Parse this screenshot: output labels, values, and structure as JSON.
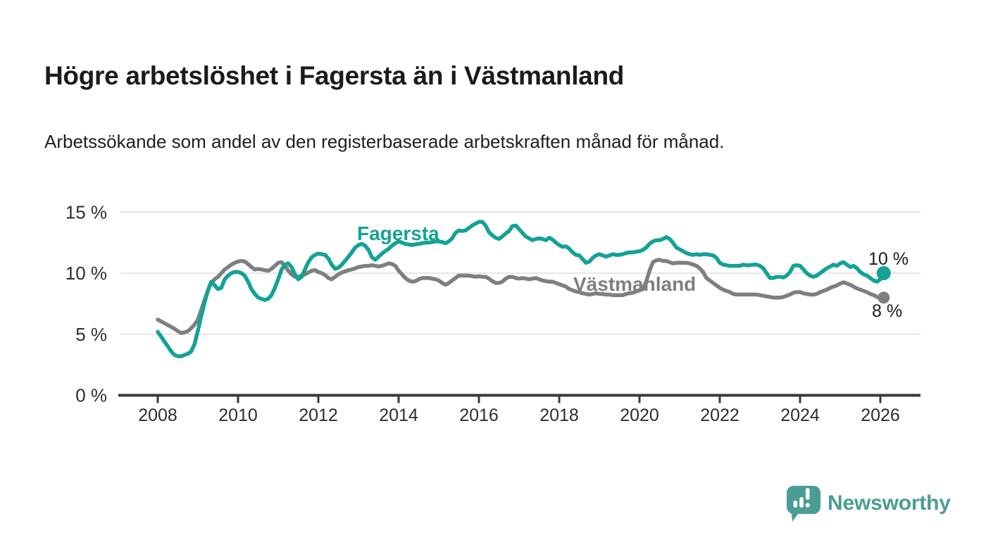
{
  "page": {
    "title": "Högre arbetslöshet i Fagersta än i Västmanland",
    "subtitle": "Arbetssökande som andel av den registerbaserade arbetskraften månad för månad."
  },
  "branding": {
    "logo_text": "Newsworthy",
    "brand_color": "#4a9d94",
    "icon": "newsworthy-chart-bubble-icon"
  },
  "chart_data": {
    "type": "line",
    "title": "Högre arbetslöshet i Fagersta än i Västmanland",
    "subtitle": "Arbetssökande som andel av den registerbaserade arbetskraften månad för månad.",
    "unit": "%",
    "frequency": "monthly",
    "x_start": "2008-01",
    "x_end": "2026-02",
    "xlabel": "",
    "ylabel": "",
    "ylim": [
      0,
      16.2
    ],
    "grid": "horizontal",
    "gridlines_at": [
      5,
      10,
      15
    ],
    "x_tick_labels": [
      "2008",
      "2010",
      "2012",
      "2014",
      "2016",
      "2018",
      "2020",
      "2022",
      "2024",
      "2026"
    ],
    "y_ticks": [
      {
        "value": 15,
        "label": "15 %"
      },
      {
        "value": 10,
        "label": "10 %"
      },
      {
        "value": 5,
        "label": "5 %"
      },
      {
        "value": 0,
        "label": "0 %"
      }
    ],
    "legend_position": "inline-labels",
    "series": [
      {
        "name": "Fagersta",
        "color": "#14a296",
        "end_label": "10 %",
        "end_value": 10,
        "values": [
          5.2,
          4.8,
          4.4,
          4.0,
          3.6,
          3.3,
          3.2,
          3.2,
          3.3,
          3.4,
          3.6,
          4.2,
          5.3,
          6.5,
          7.6,
          8.6,
          9.3,
          9.0,
          8.7,
          8.8,
          9.5,
          9.8,
          10.0,
          10.1,
          10.1,
          10.0,
          9.8,
          9.3,
          8.7,
          8.3,
          8.0,
          7.9,
          7.8,
          7.9,
          8.2,
          8.8,
          9.5,
          10.3,
          10.7,
          10.8,
          10.5,
          9.9,
          9.5,
          9.7,
          10.3,
          10.9,
          11.3,
          11.5,
          11.6,
          11.55,
          11.5,
          11.2,
          10.7,
          10.35,
          10.45,
          10.7,
          11.0,
          11.35,
          11.7,
          12.1,
          12.3,
          12.4,
          12.25,
          11.9,
          11.3,
          11.1,
          11.35,
          11.6,
          11.8,
          12.0,
          12.25,
          12.45,
          12.6,
          12.5,
          12.4,
          12.35,
          12.3,
          12.35,
          12.4,
          12.45,
          12.5,
          12.5,
          12.55,
          12.6,
          12.6,
          12.55,
          12.45,
          12.6,
          12.85,
          13.3,
          13.5,
          13.45,
          13.5,
          13.7,
          13.9,
          14.05,
          14.2,
          14.2,
          13.9,
          13.35,
          13.1,
          12.9,
          12.8,
          13.0,
          13.25,
          13.45,
          13.85,
          13.9,
          13.6,
          13.3,
          13.0,
          12.85,
          12.7,
          12.8,
          12.85,
          12.8,
          12.7,
          12.9,
          12.75,
          12.5,
          12.3,
          12.15,
          12.2,
          12.0,
          11.7,
          11.5,
          11.45,
          11.15,
          10.85,
          10.95,
          11.25,
          11.45,
          11.55,
          11.45,
          11.35,
          11.45,
          11.55,
          11.5,
          11.5,
          11.55,
          11.65,
          11.7,
          11.7,
          11.75,
          11.8,
          11.9,
          12.1,
          12.4,
          12.6,
          12.7,
          12.7,
          12.8,
          12.95,
          12.8,
          12.5,
          12.1,
          11.95,
          11.8,
          11.65,
          11.55,
          11.5,
          11.55,
          11.5,
          11.55,
          11.55,
          11.5,
          11.45,
          11.25,
          10.85,
          10.7,
          10.65,
          10.6,
          10.6,
          10.6,
          10.6,
          10.7,
          10.65,
          10.65,
          10.7,
          10.7,
          10.6,
          10.4,
          10.0,
          9.6,
          9.6,
          9.7,
          9.7,
          9.65,
          9.8,
          10.1,
          10.6,
          10.65,
          10.6,
          10.3,
          10.0,
          9.8,
          9.7,
          9.8,
          10.0,
          10.2,
          10.4,
          10.55,
          10.7,
          10.6,
          10.8,
          10.9,
          10.7,
          10.5,
          10.6,
          10.4,
          10.1,
          9.9,
          9.8,
          9.6,
          9.4,
          9.3,
          9.5,
          10.0
        ]
      },
      {
        "name": "Västmanland",
        "color": "#7e7f81",
        "end_label": "8 %",
        "end_value": 8,
        "values": [
          6.2,
          6.05,
          5.9,
          5.75,
          5.6,
          5.45,
          5.25,
          5.1,
          5.15,
          5.25,
          5.5,
          5.8,
          6.2,
          7.0,
          7.8,
          8.6,
          9.2,
          9.5,
          9.7,
          10.0,
          10.3,
          10.5,
          10.7,
          10.85,
          10.95,
          11.0,
          10.95,
          10.75,
          10.5,
          10.3,
          10.35,
          10.3,
          10.25,
          10.2,
          10.35,
          10.6,
          10.85,
          10.9,
          10.6,
          10.2,
          9.9,
          9.7,
          9.7,
          9.8,
          9.9,
          10.05,
          10.2,
          10.25,
          10.1,
          10.0,
          9.85,
          9.6,
          9.5,
          9.7,
          9.9,
          10.05,
          10.15,
          10.25,
          10.3,
          10.4,
          10.5,
          10.55,
          10.6,
          10.6,
          10.65,
          10.6,
          10.55,
          10.6,
          10.7,
          10.8,
          10.75,
          10.6,
          10.2,
          9.9,
          9.6,
          9.4,
          9.3,
          9.35,
          9.5,
          9.6,
          9.6,
          9.6,
          9.55,
          9.5,
          9.4,
          9.2,
          9.05,
          9.2,
          9.4,
          9.6,
          9.8,
          9.8,
          9.8,
          9.8,
          9.75,
          9.7,
          9.75,
          9.7,
          9.7,
          9.55,
          9.35,
          9.2,
          9.2,
          9.3,
          9.55,
          9.7,
          9.7,
          9.6,
          9.55,
          9.6,
          9.55,
          9.5,
          9.55,
          9.6,
          9.5,
          9.4,
          9.35,
          9.3,
          9.3,
          9.2,
          9.1,
          9.0,
          8.9,
          8.7,
          8.6,
          8.5,
          8.45,
          8.35,
          8.3,
          8.25,
          8.3,
          8.35,
          8.3,
          8.3,
          8.25,
          8.25,
          8.2,
          8.2,
          8.2,
          8.2,
          8.3,
          8.35,
          8.4,
          8.5,
          8.6,
          8.7,
          9.3,
          10.2,
          10.9,
          11.05,
          11.1,
          11.0,
          11.0,
          10.9,
          10.8,
          10.85,
          10.85,
          10.85,
          10.85,
          10.8,
          10.7,
          10.6,
          10.4,
          10.1,
          9.6,
          9.4,
          9.2,
          9.0,
          8.8,
          8.65,
          8.55,
          8.45,
          8.3,
          8.25,
          8.25,
          8.25,
          8.25,
          8.25,
          8.25,
          8.25,
          8.2,
          8.15,
          8.1,
          8.05,
          8.0,
          8.0,
          8.0,
          8.05,
          8.15,
          8.25,
          8.4,
          8.45,
          8.45,
          8.35,
          8.3,
          8.25,
          8.25,
          8.3,
          8.45,
          8.55,
          8.65,
          8.8,
          8.9,
          9.0,
          9.15,
          9.25,
          9.15,
          9.05,
          8.9,
          8.75,
          8.65,
          8.55,
          8.45,
          8.3,
          8.2,
          8.05,
          7.95,
          8.0
        ]
      }
    ]
  }
}
